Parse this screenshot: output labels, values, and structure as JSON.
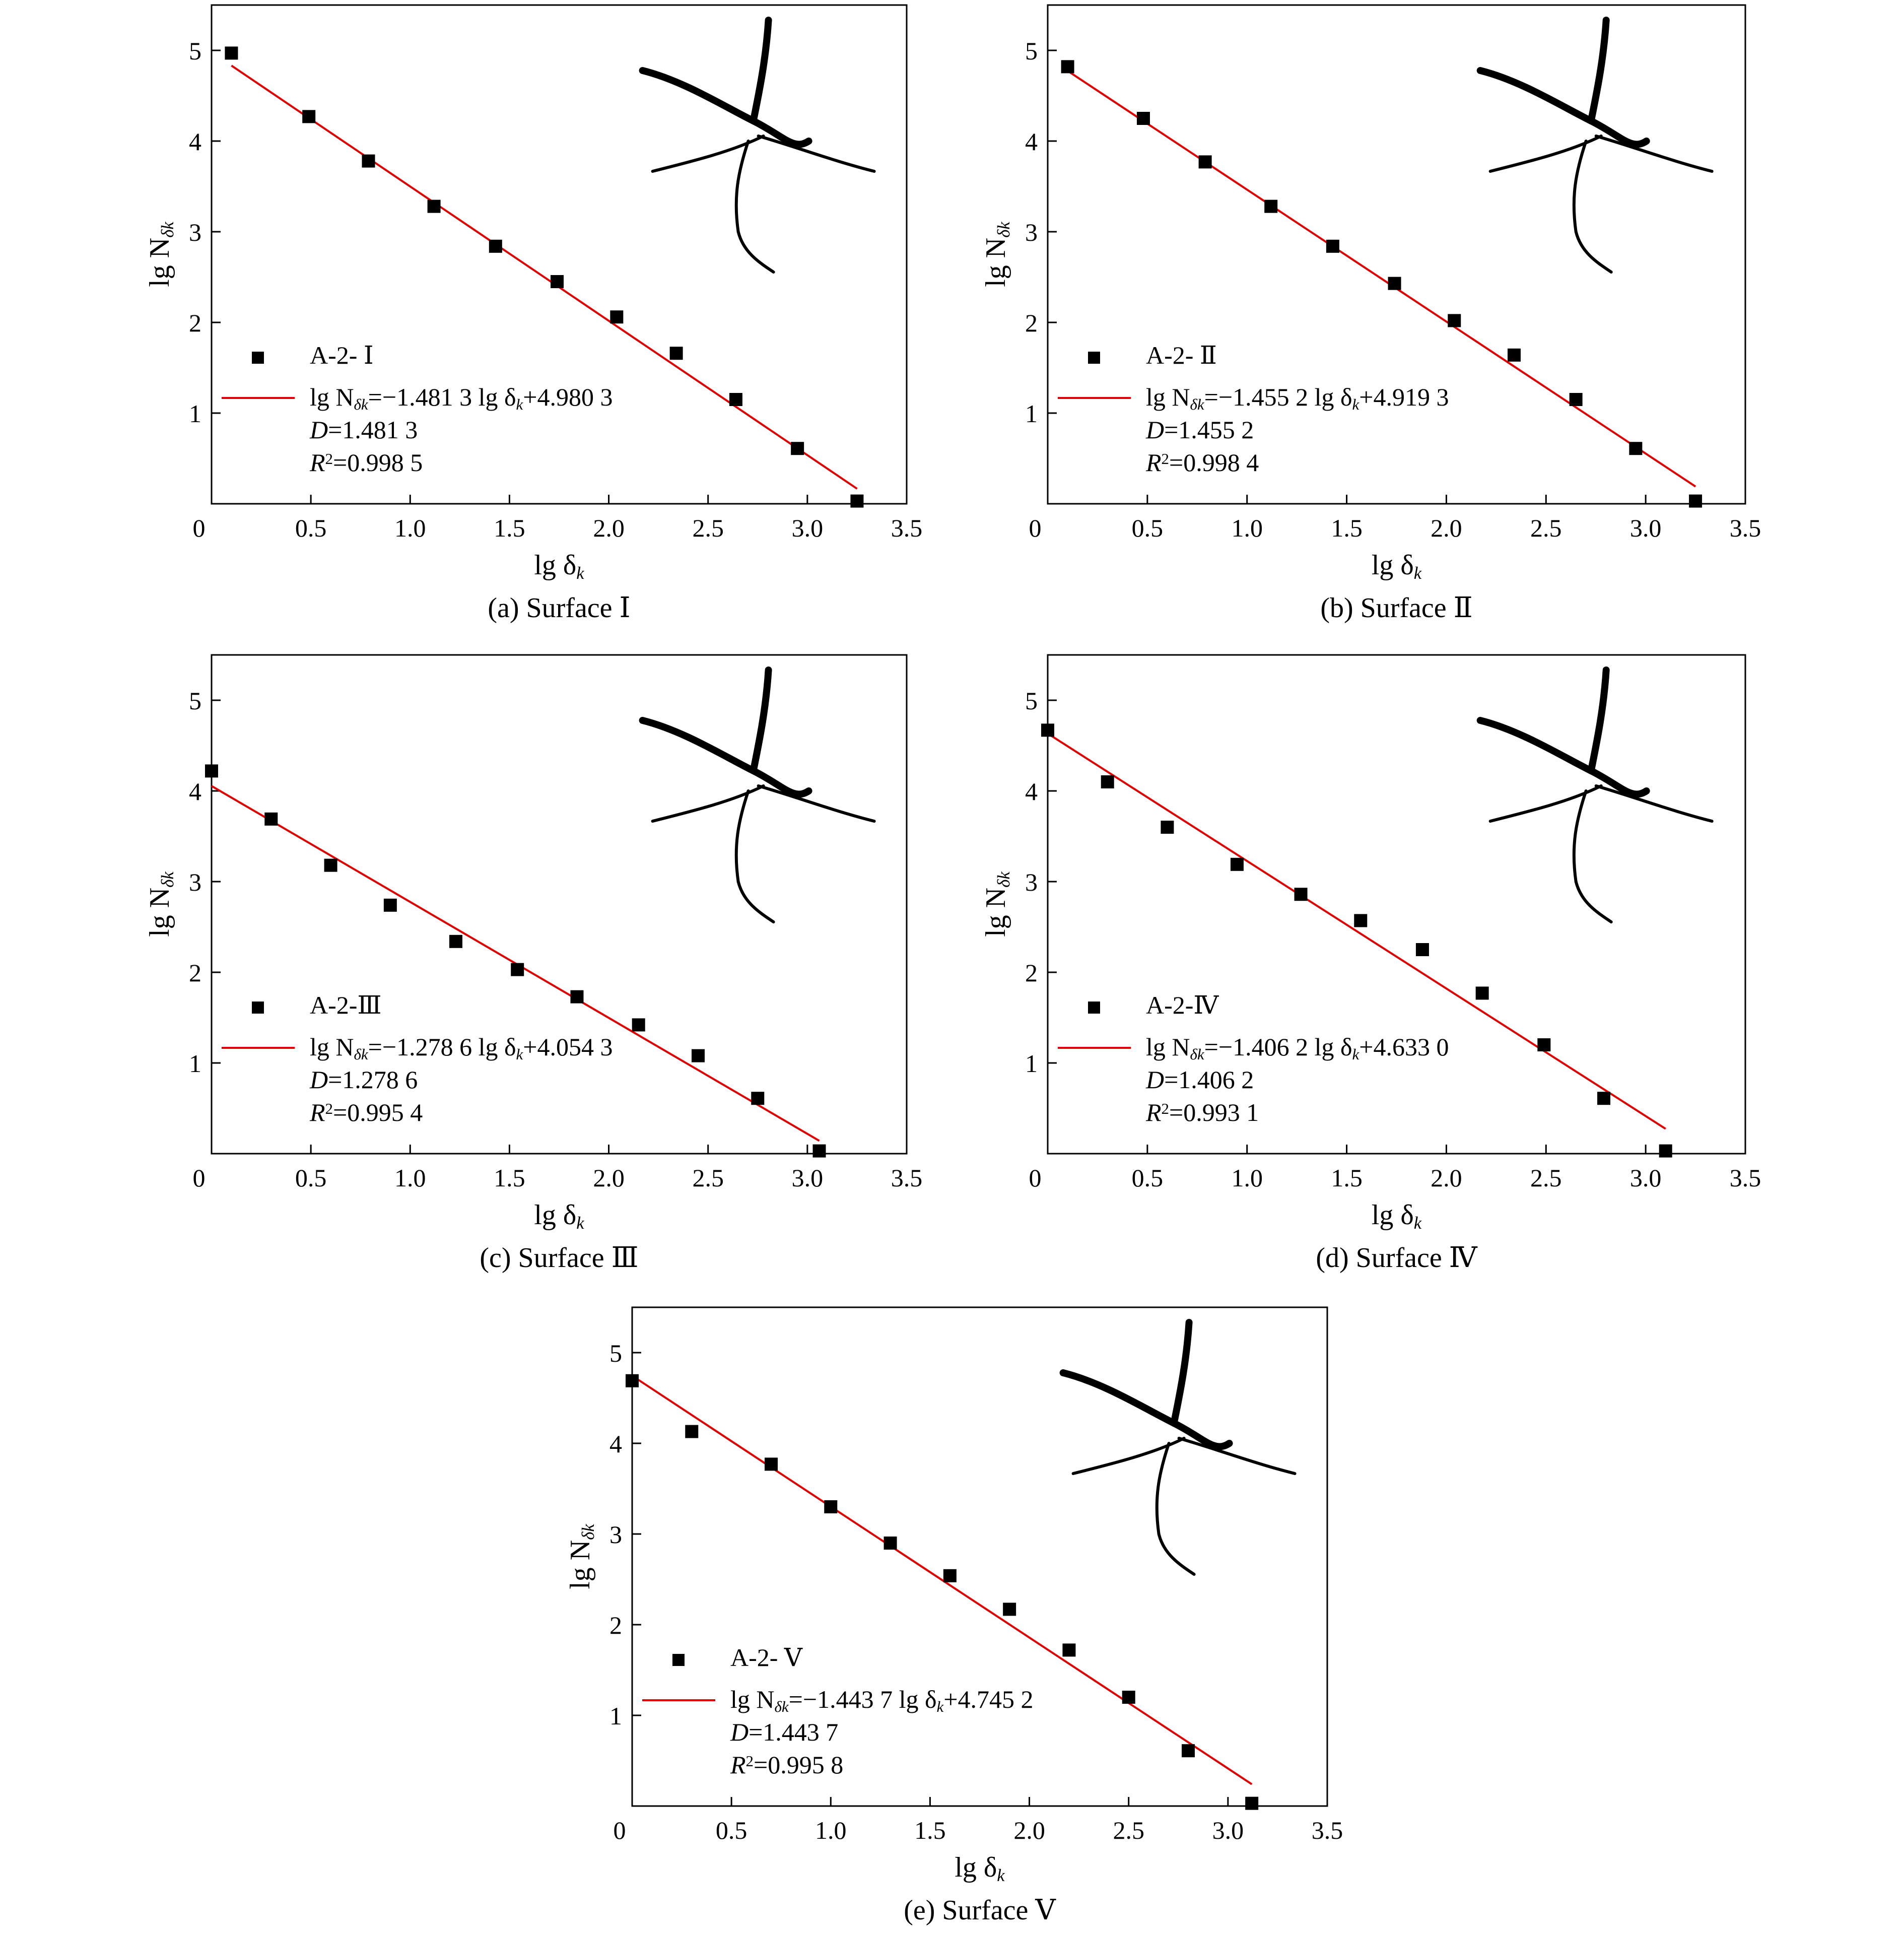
{
  "chart_data": [
    {
      "type": "scatter",
      "panel_id": "a",
      "caption": "(a) Surface Ⅰ",
      "xlabel_main": "lg δ",
      "xlabel_sub": "k",
      "ylabel_main": "lg N",
      "ylabel_sub": "δk",
      "xlim": [
        0,
        3.5
      ],
      "ylim": [
        0,
        5.5
      ],
      "xticks": [
        "0",
        "0.5",
        "1.0",
        "1.5",
        "2.0",
        "2.5",
        "3.0",
        "3.5"
      ],
      "yticks": [
        "1",
        "2",
        "3",
        "4",
        "5"
      ],
      "series_label": "A-2- Ⅰ",
      "fit": {
        "slope": -1.4813,
        "intercept": 4.9803,
        "x_range": [
          0.1,
          3.25
        ],
        "eq_prefix": "lg N",
        "eq_prefix_sub": "δk",
        "eq_middle": "=−1.481 3 lg δ",
        "eq_middle_sub": "k",
        "eq_suffix": "+4.980 3",
        "d_symbol": "D",
        "d_value": "=1.481 3",
        "r2_symbol": "R",
        "r2_sup": "2",
        "r2_value": "=0.998 5"
      },
      "points": [
        [
          0.1,
          4.97
        ],
        [
          0.49,
          4.27
        ],
        [
          0.79,
          3.78
        ],
        [
          1.12,
          3.28
        ],
        [
          1.43,
          2.84
        ],
        [
          1.74,
          2.45
        ],
        [
          2.04,
          2.06
        ],
        [
          2.34,
          1.66
        ],
        [
          2.64,
          1.15
        ],
        [
          2.95,
          0.61
        ],
        [
          3.25,
          0.03
        ]
      ],
      "color": "#e00000"
    },
    {
      "type": "scatter",
      "panel_id": "b",
      "caption": "(b) Surface Ⅱ",
      "xlabel_main": "lg δ",
      "xlabel_sub": "k",
      "ylabel_main": "lg N",
      "ylabel_sub": "δk",
      "xlim": [
        0,
        3.5
      ],
      "ylim": [
        0,
        5.5
      ],
      "xticks": [
        "0",
        "0.5",
        "1.0",
        "1.5",
        "2.0",
        "2.5",
        "3.0",
        "3.5"
      ],
      "yticks": [
        "1",
        "2",
        "3",
        "4",
        "5"
      ],
      "series_label": "A-2- Ⅱ",
      "fit": {
        "slope": -1.4552,
        "intercept": 4.9193,
        "x_range": [
          0.1,
          3.25
        ],
        "eq_prefix": "lg N",
        "eq_prefix_sub": "δk",
        "eq_middle": "=−1.455 2 lg δ",
        "eq_middle_sub": "k",
        "eq_suffix": "+4.919 3",
        "d_symbol": "D",
        "d_value": "=1.455 2",
        "r2_symbol": "R",
        "r2_sup": "2",
        "r2_value": "=0.998 4"
      },
      "points": [
        [
          0.1,
          4.82
        ],
        [
          0.48,
          4.25
        ],
        [
          0.79,
          3.77
        ],
        [
          1.12,
          3.28
        ],
        [
          1.43,
          2.84
        ],
        [
          1.74,
          2.43
        ],
        [
          2.04,
          2.02
        ],
        [
          2.34,
          1.64
        ],
        [
          2.65,
          1.15
        ],
        [
          2.95,
          0.61
        ],
        [
          3.25,
          0.03
        ]
      ],
      "color": "#e00000"
    },
    {
      "type": "scatter",
      "panel_id": "c",
      "caption": "(c) Surface Ⅲ",
      "xlabel_main": "lg δ",
      "xlabel_sub": "k",
      "ylabel_main": "lg N",
      "ylabel_sub": "δk",
      "xlim": [
        0,
        3.5
      ],
      "ylim": [
        0,
        5.5
      ],
      "xticks": [
        "0",
        "0.5",
        "1.0",
        "1.5",
        "2.0",
        "2.5",
        "3.0",
        "3.5"
      ],
      "yticks": [
        "1",
        "2",
        "3",
        "4",
        "5"
      ],
      "series_label": "A-2-Ⅲ",
      "fit": {
        "slope": -1.2786,
        "intercept": 4.0543,
        "x_range": [
          0.0,
          3.06
        ],
        "eq_prefix": "lg N",
        "eq_prefix_sub": "δk",
        "eq_middle": "=−1.278 6 lg δ",
        "eq_middle_sub": "k",
        "eq_suffix": "+4.054 3",
        "d_symbol": "D",
        "d_value": "=1.278 6",
        "r2_symbol": "R",
        "r2_sup": "2",
        "r2_value": "=0.995 4"
      },
      "points": [
        [
          0.0,
          4.22
        ],
        [
          0.3,
          3.69
        ],
        [
          0.6,
          3.18
        ],
        [
          0.9,
          2.74
        ],
        [
          1.23,
          2.34
        ],
        [
          1.54,
          2.03
        ],
        [
          1.84,
          1.73
        ],
        [
          2.15,
          1.42
        ],
        [
          2.45,
          1.08
        ],
        [
          2.75,
          0.61
        ],
        [
          3.06,
          0.03
        ]
      ],
      "color": "#e00000"
    },
    {
      "type": "scatter",
      "panel_id": "d",
      "caption": "(d) Surface Ⅳ",
      "xlabel_main": "lg δ",
      "xlabel_sub": "k",
      "ylabel_main": "lg N",
      "ylabel_sub": "δk",
      "xlim": [
        0,
        3.5
      ],
      "ylim": [
        0,
        5.5
      ],
      "xticks": [
        "0",
        "0.5",
        "1.0",
        "1.5",
        "2.0",
        "2.5",
        "3.0",
        "3.5"
      ],
      "yticks": [
        "1",
        "2",
        "3",
        "4",
        "5"
      ],
      "series_label": "A-2-Ⅳ",
      "fit": {
        "slope": -1.4062,
        "intercept": 4.633,
        "x_range": [
          0.0,
          3.1
        ],
        "eq_prefix": "lg N",
        "eq_prefix_sub": "δk",
        "eq_middle": "=−1.406 2 lg δ",
        "eq_middle_sub": "k",
        "eq_suffix": "+4.633 0",
        "d_symbol": "D",
        "d_value": "=1.406 2",
        "r2_symbol": "R",
        "r2_sup": "2",
        "r2_value": "=0.993 1"
      },
      "points": [
        [
          0.0,
          4.67
        ],
        [
          0.3,
          4.1
        ],
        [
          0.6,
          3.6
        ],
        [
          0.95,
          3.19
        ],
        [
          1.27,
          2.86
        ],
        [
          1.57,
          2.57
        ],
        [
          1.88,
          2.25
        ],
        [
          2.18,
          1.77
        ],
        [
          2.49,
          1.2
        ],
        [
          2.79,
          0.61
        ],
        [
          3.1,
          0.03
        ]
      ],
      "color": "#e00000"
    },
    {
      "type": "scatter",
      "panel_id": "e",
      "caption": "(e) Surface Ⅴ",
      "xlabel_main": "lg δ",
      "xlabel_sub": "k",
      "ylabel_main": "lg N",
      "ylabel_sub": "δk",
      "xlim": [
        0,
        3.5
      ],
      "ylim": [
        0,
        5.5
      ],
      "xticks": [
        "0",
        "0.5",
        "1.0",
        "1.5",
        "2.0",
        "2.5",
        "3.0",
        "3.5"
      ],
      "yticks": [
        "1",
        "2",
        "3",
        "4",
        "5"
      ],
      "series_label": "A-2- Ⅴ",
      "fit": {
        "slope": -1.4437,
        "intercept": 4.7452,
        "x_range": [
          0.0,
          3.12
        ],
        "eq_prefix": "lg N",
        "eq_prefix_sub": "δk",
        "eq_middle": "=−1.443 7 lg δ",
        "eq_middle_sub": "k",
        "eq_suffix": "+4.745 2",
        "d_symbol": "D",
        "d_value": "=1.443 7",
        "r2_symbol": "R",
        "r2_sup": "2",
        "r2_value": "=0.995 8"
      },
      "points": [
        [
          0.0,
          4.69
        ],
        [
          0.3,
          4.13
        ],
        [
          0.7,
          3.77
        ],
        [
          1.0,
          3.3
        ],
        [
          1.3,
          2.9
        ],
        [
          1.6,
          2.54
        ],
        [
          1.9,
          2.17
        ],
        [
          2.2,
          1.72
        ],
        [
          2.5,
          1.2
        ],
        [
          2.8,
          0.61
        ],
        [
          3.12,
          0.03
        ]
      ],
      "color": "#e00000"
    }
  ]
}
